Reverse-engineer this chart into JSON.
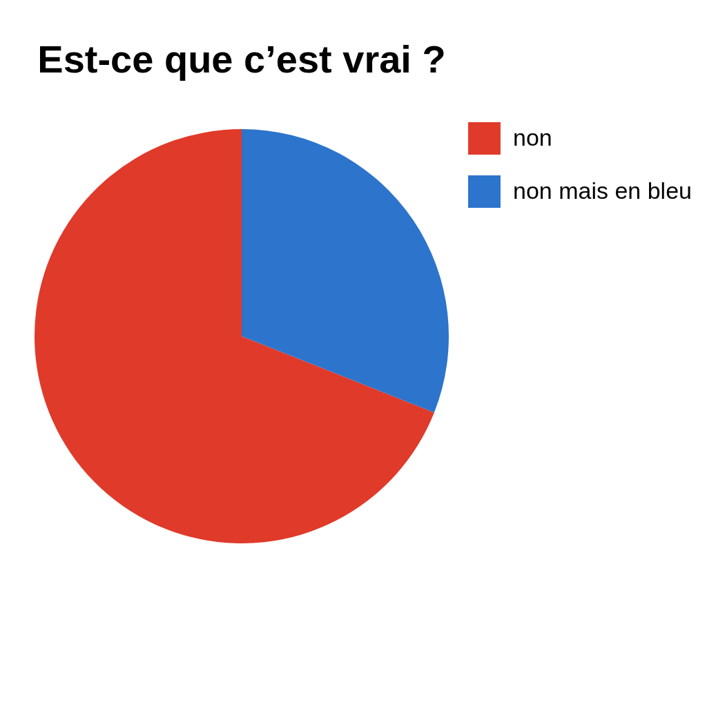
{
  "chart_data": {
    "type": "pie",
    "title": "Est-ce que c’est vrai ?",
    "categories": [
      "non",
      "non mais en bleu"
    ],
    "values": [
      69,
      31
    ],
    "colors": [
      "#e03a2a",
      "#2c74cc"
    ],
    "legend": "right"
  }
}
